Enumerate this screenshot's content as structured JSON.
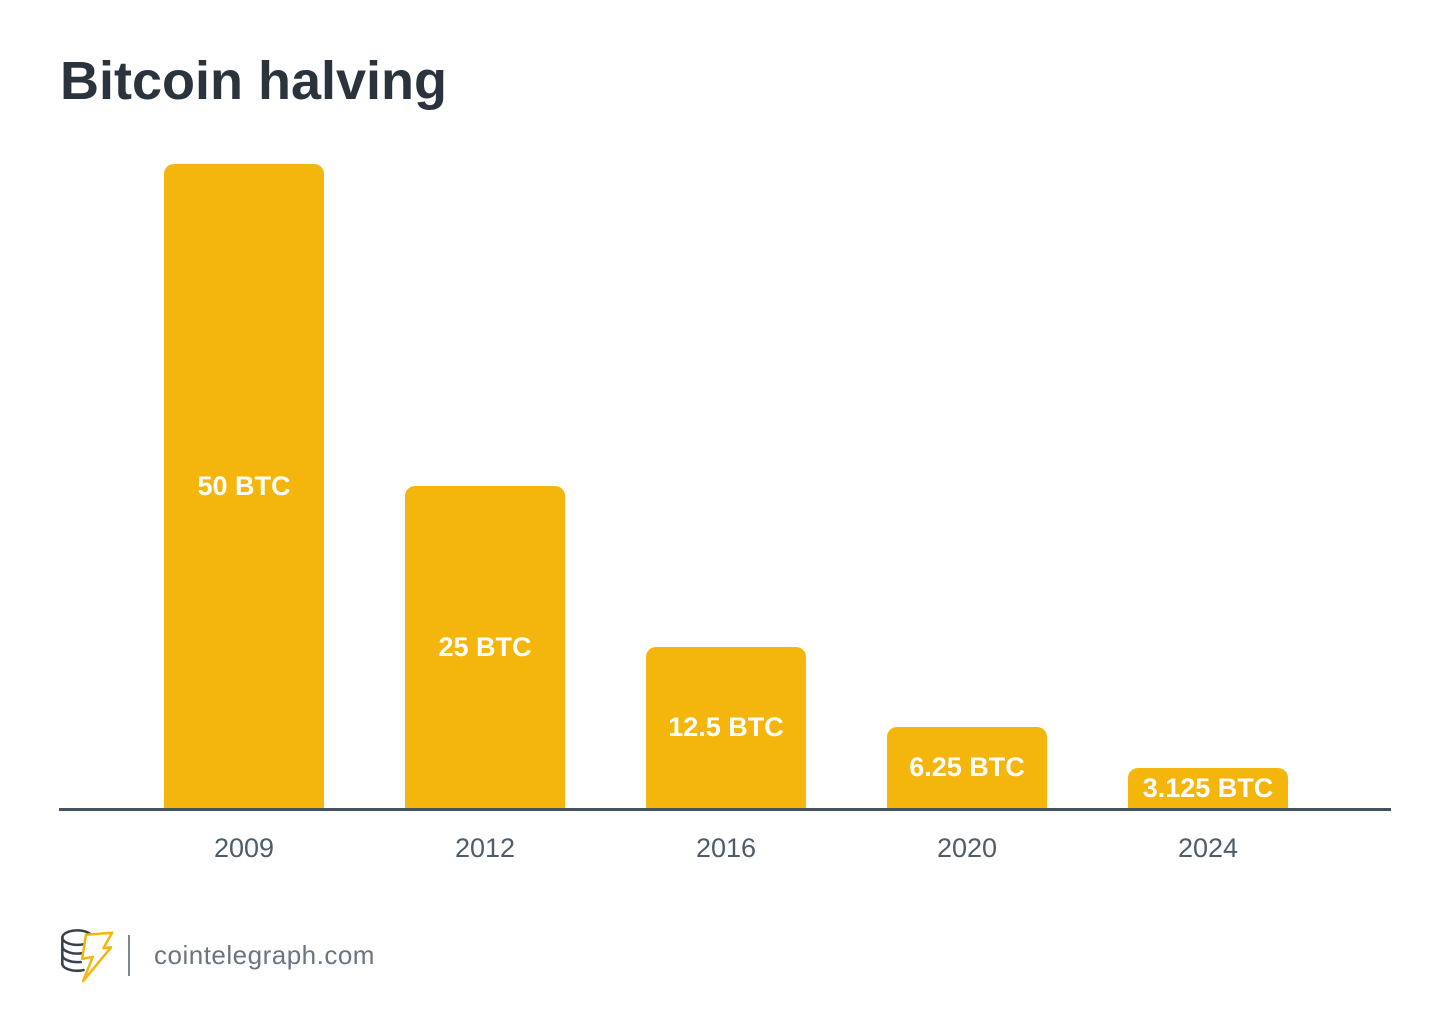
{
  "page": {
    "title": "Bitcoin halving"
  },
  "colors": {
    "bar": "#F4B60C",
    "title_text": "#2B343C",
    "axis_line": "#44525E",
    "year_label": "#4E5D68",
    "bar_label_text": "#FFFFFF",
    "footer_text": "#6B7580",
    "logo_coins_outline": "#37424A",
    "logo_bolt": "#F4B60C"
  },
  "chart_data": {
    "type": "bar",
    "title": "Bitcoin halving",
    "categories": [
      "2009",
      "2012",
      "2016",
      "2020",
      "2024"
    ],
    "values": [
      50,
      25,
      12.5,
      6.25,
      3.125
    ],
    "bar_labels": [
      "50 BTC",
      "25 BTC",
      "12.5 BTC",
      "6.25 BTC",
      "3.125 BTC"
    ],
    "unit": "BTC",
    "xlabel": "",
    "ylabel": "",
    "ylim": [
      0,
      52
    ],
    "grid": false,
    "legend": false,
    "bar_color": "#F4B60C",
    "label_position": "centered-inside-white"
  },
  "footer": {
    "site": "cointelegraph.com",
    "logo": "cointelegraph-logo"
  }
}
